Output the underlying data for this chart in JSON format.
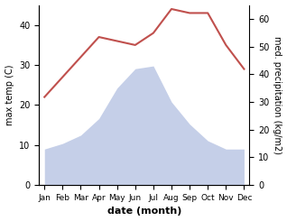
{
  "months": [
    "Jan",
    "Feb",
    "Mar",
    "Apr",
    "May",
    "Jun",
    "Jul",
    "Aug",
    "Sep",
    "Oct",
    "Nov",
    "Dec"
  ],
  "temperature": [
    22,
    27,
    32,
    37,
    36,
    35,
    38,
    44,
    43,
    43,
    35,
    29
  ],
  "precipitation": [
    13,
    15,
    18,
    24,
    35,
    42,
    43,
    30,
    22,
    16,
    13,
    13
  ],
  "temp_color": "#c0504d",
  "precip_fill_color": "#c5cfe8",
  "ylim_left": [
    0,
    45
  ],
  "ylim_right": [
    0,
    65
  ],
  "yticks_left": [
    0,
    10,
    20,
    30,
    40
  ],
  "yticks_right": [
    0,
    10,
    20,
    30,
    40,
    50,
    60
  ],
  "xlabel": "date (month)",
  "ylabel_left": "max temp (C)",
  "ylabel_right": "med. precipitation (kg/m2)",
  "bg_color": "#ffffff",
  "plot_bg_color": "#ffffff"
}
